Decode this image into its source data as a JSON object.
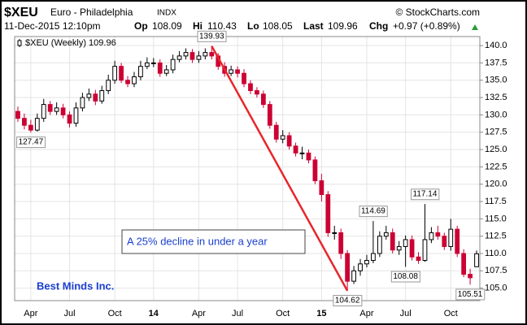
{
  "chart_data": {
    "type": "candlestick",
    "symbol": "$XEU",
    "name": "Euro - Philadelphia",
    "exchange": "INDX",
    "source": "© StockCharts.com",
    "date": "11-Dec-2015 12:10pm",
    "quote_labels": [
      "Op",
      "Hi",
      "Lo",
      "Last",
      "Chg"
    ],
    "quote_values": [
      108.09,
      110.43,
      108.05,
      109.96
    ],
    "change": "+0.97 (+0.89%)",
    "legend": "$XEU (Weekly) 109.96",
    "annotation_box": "A 25% decline in under a year",
    "watermark": "Best Minds Inc.",
    "up_color": "#000000",
    "down_color": "#cc0033",
    "trend_color": "#e8262b",
    "grid": true,
    "categories": [
      null,
      null,
      "Apr",
      null,
      null,
      null,
      null,
      null,
      "Jul",
      null,
      null,
      null,
      null,
      null,
      null,
      "Oct",
      null,
      null,
      null,
      null,
      null,
      "14",
      null,
      null,
      null,
      null,
      null,
      null,
      "Apr",
      null,
      null,
      null,
      null,
      null,
      "Jul",
      null,
      null,
      null,
      null,
      null,
      null,
      "Oct",
      null,
      null,
      null,
      null,
      null,
      "15",
      null,
      null,
      null,
      null,
      null,
      null,
      "Apr",
      null,
      null,
      null,
      null,
      null,
      "Jul",
      null,
      null,
      null,
      null,
      null,
      null,
      "Oct",
      null,
      null,
      null,
      null
    ],
    "open": [
      130.5,
      129.5,
      128.5,
      127.8,
      129.5,
      131.5,
      130.5,
      131.0,
      130.0,
      128.8,
      131.0,
      132.5,
      133.0,
      132.0,
      133.5,
      135.0,
      137.0,
      135.0,
      134.5,
      135.5,
      137.0,
      137.5,
      137.5,
      136.0,
      136.5,
      138.0,
      138.5,
      139.0,
      138.0,
      138.5,
      139.0,
      138.5,
      137.0,
      136.0,
      136.5,
      136.0,
      134.5,
      133.5,
      133.0,
      131.5,
      128.5,
      126.5,
      127.0,
      125.5,
      124.5,
      124.5,
      123.5,
      120.5,
      118.5,
      113.0,
      113.0,
      110.0,
      106.0,
      107.5,
      108.5,
      109.0,
      110.0,
      112.5,
      113.0,
      110.5,
      111.0,
      112.0,
      109.5,
      109.0,
      112.0,
      113.0,
      112.5,
      111.0,
      113.5,
      110.0,
      107.0,
      108.09
    ],
    "high": [
      131.2,
      130.2,
      129.3,
      130.2,
      132.3,
      132.0,
      131.8,
      131.6,
      130.5,
      131.8,
      133.2,
      133.8,
      133.6,
      134.2,
      135.8,
      137.8,
      137.5,
      135.6,
      136.2,
      137.8,
      138.3,
      138.2,
      138.0,
      137.2,
      138.7,
      139.2,
      139.6,
      139.5,
      139.2,
      139.6,
      139.93,
      138.9,
      137.6,
      137.1,
      137.0,
      136.6,
      135.0,
      134.0,
      133.5,
      132.0,
      129.0,
      127.8,
      127.5,
      126.0,
      125.4,
      125.0,
      124.0,
      121.5,
      119.0,
      114.0,
      113.6,
      110.5,
      108.2,
      109.2,
      109.8,
      114.69,
      113.2,
      114.0,
      113.6,
      111.8,
      112.6,
      112.6,
      110.2,
      117.14,
      113.8,
      114.0,
      113.0,
      115.0,
      114.0,
      110.6,
      107.8,
      110.43
    ],
    "low": [
      129.0,
      127.9,
      127.47,
      127.6,
      129.0,
      130.0,
      130.0,
      129.5,
      128.2,
      128.3,
      130.5,
      132.0,
      131.4,
      131.6,
      133.0,
      134.5,
      134.6,
      134.0,
      134.0,
      135.0,
      136.6,
      136.9,
      135.5,
      135.6,
      136.0,
      137.6,
      138.0,
      137.5,
      137.5,
      138.0,
      138.0,
      136.5,
      135.5,
      135.6,
      135.4,
      134.0,
      133.0,
      132.5,
      131.0,
      128.0,
      126.0,
      125.9,
      125.0,
      124.0,
      123.6,
      123.0,
      120.0,
      117.5,
      112.4,
      112.0,
      109.2,
      104.62,
      105.6,
      106.8,
      108.0,
      108.6,
      109.5,
      112.0,
      110.0,
      109.8,
      108.08,
      109.0,
      108.5,
      108.8,
      111.5,
      112.0,
      110.5,
      110.4,
      109.5,
      106.6,
      105.51,
      108.05
    ],
    "close": [
      129.5,
      128.5,
      127.8,
      129.5,
      131.5,
      130.5,
      131.0,
      130.0,
      128.8,
      131.0,
      132.5,
      133.0,
      132.0,
      133.5,
      135.0,
      137.0,
      135.0,
      134.5,
      135.5,
      137.0,
      137.5,
      137.5,
      136.0,
      136.5,
      138.0,
      138.5,
      139.0,
      138.0,
      138.5,
      139.0,
      138.5,
      137.0,
      136.0,
      136.5,
      136.0,
      134.5,
      133.5,
      133.0,
      131.5,
      128.5,
      126.5,
      127.0,
      125.5,
      124.5,
      124.5,
      123.5,
      120.5,
      118.5,
      113.0,
      113.0,
      110.0,
      106.0,
      107.5,
      108.5,
      109.0,
      110.0,
      112.5,
      113.0,
      110.5,
      111.0,
      112.0,
      109.5,
      109.0,
      112.0,
      113.0,
      112.5,
      111.0,
      113.5,
      110.0,
      107.0,
      106.5,
      109.96
    ],
    "ylim": [
      103.2,
      141.3
    ],
    "yticks": [
      {
        "value": 105,
        "label": "105.0"
      },
      {
        "value": 107.5,
        "label": "107.5"
      },
      {
        "value": 110,
        "label": "110.0"
      },
      {
        "value": 112.5,
        "label": "112.5"
      },
      {
        "value": 115,
        "label": "115.0"
      },
      {
        "value": 117.5,
        "label": "117.5"
      },
      {
        "value": 120,
        "label": "120.0"
      },
      {
        "value": 122.5,
        "label": "122.5"
      },
      {
        "value": 125,
        "label": "125.0"
      },
      {
        "value": 127.5,
        "label": "127.5"
      },
      {
        "value": 130,
        "label": "130.0"
      },
      {
        "value": 132.5,
        "label": "132.5"
      },
      {
        "value": 135,
        "label": "135.0"
      },
      {
        "value": 137.5,
        "label": "137.5"
      },
      {
        "value": 140,
        "label": "140.0"
      }
    ]
  }
}
